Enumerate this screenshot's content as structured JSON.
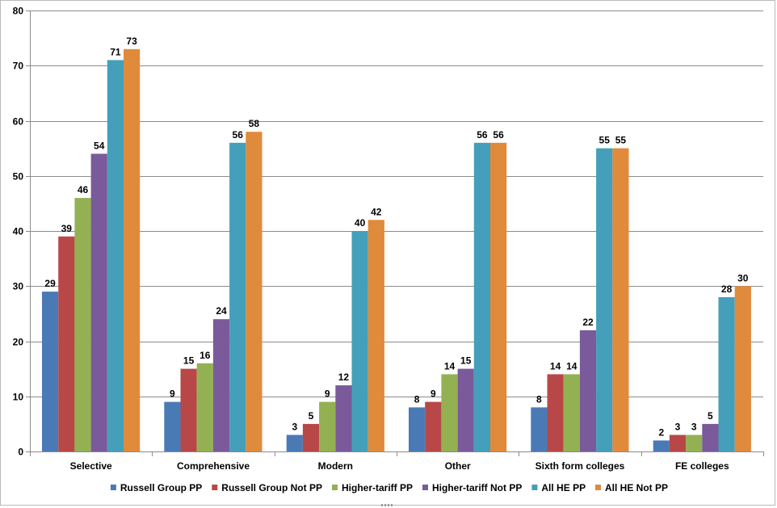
{
  "chart_data": {
    "type": "bar",
    "title": "",
    "xlabel": "",
    "ylabel": "",
    "ylim": [
      0,
      80
    ],
    "ytick_step": 10,
    "grid": true,
    "legend_position": "bottom",
    "categories": [
      "Selective",
      "Comprehensive",
      "Modern",
      "Other",
      "Sixth form colleges",
      "FE colleges"
    ],
    "series": [
      {
        "name": "Russell Group PP",
        "color": "#4a7ab5",
        "values": [
          29,
          9,
          3,
          8,
          8,
          2
        ]
      },
      {
        "name": "Russell Group Not PP",
        "color": "#b84847",
        "values": [
          39,
          15,
          5,
          9,
          14,
          3
        ]
      },
      {
        "name": "Higher-tariff PP",
        "color": "#93b153",
        "values": [
          46,
          16,
          9,
          14,
          14,
          3
        ]
      },
      {
        "name": "Higher-tariff Not PP",
        "color": "#7a5a9a",
        "values": [
          54,
          24,
          12,
          15,
          22,
          5
        ]
      },
      {
        "name": "All HE PP",
        "color": "#449fba",
        "values": [
          71,
          56,
          40,
          56,
          55,
          28
        ]
      },
      {
        "name": "All HE Not PP",
        "color": "#e08a3c",
        "values": [
          73,
          58,
          42,
          56,
          55,
          30
        ]
      }
    ]
  }
}
